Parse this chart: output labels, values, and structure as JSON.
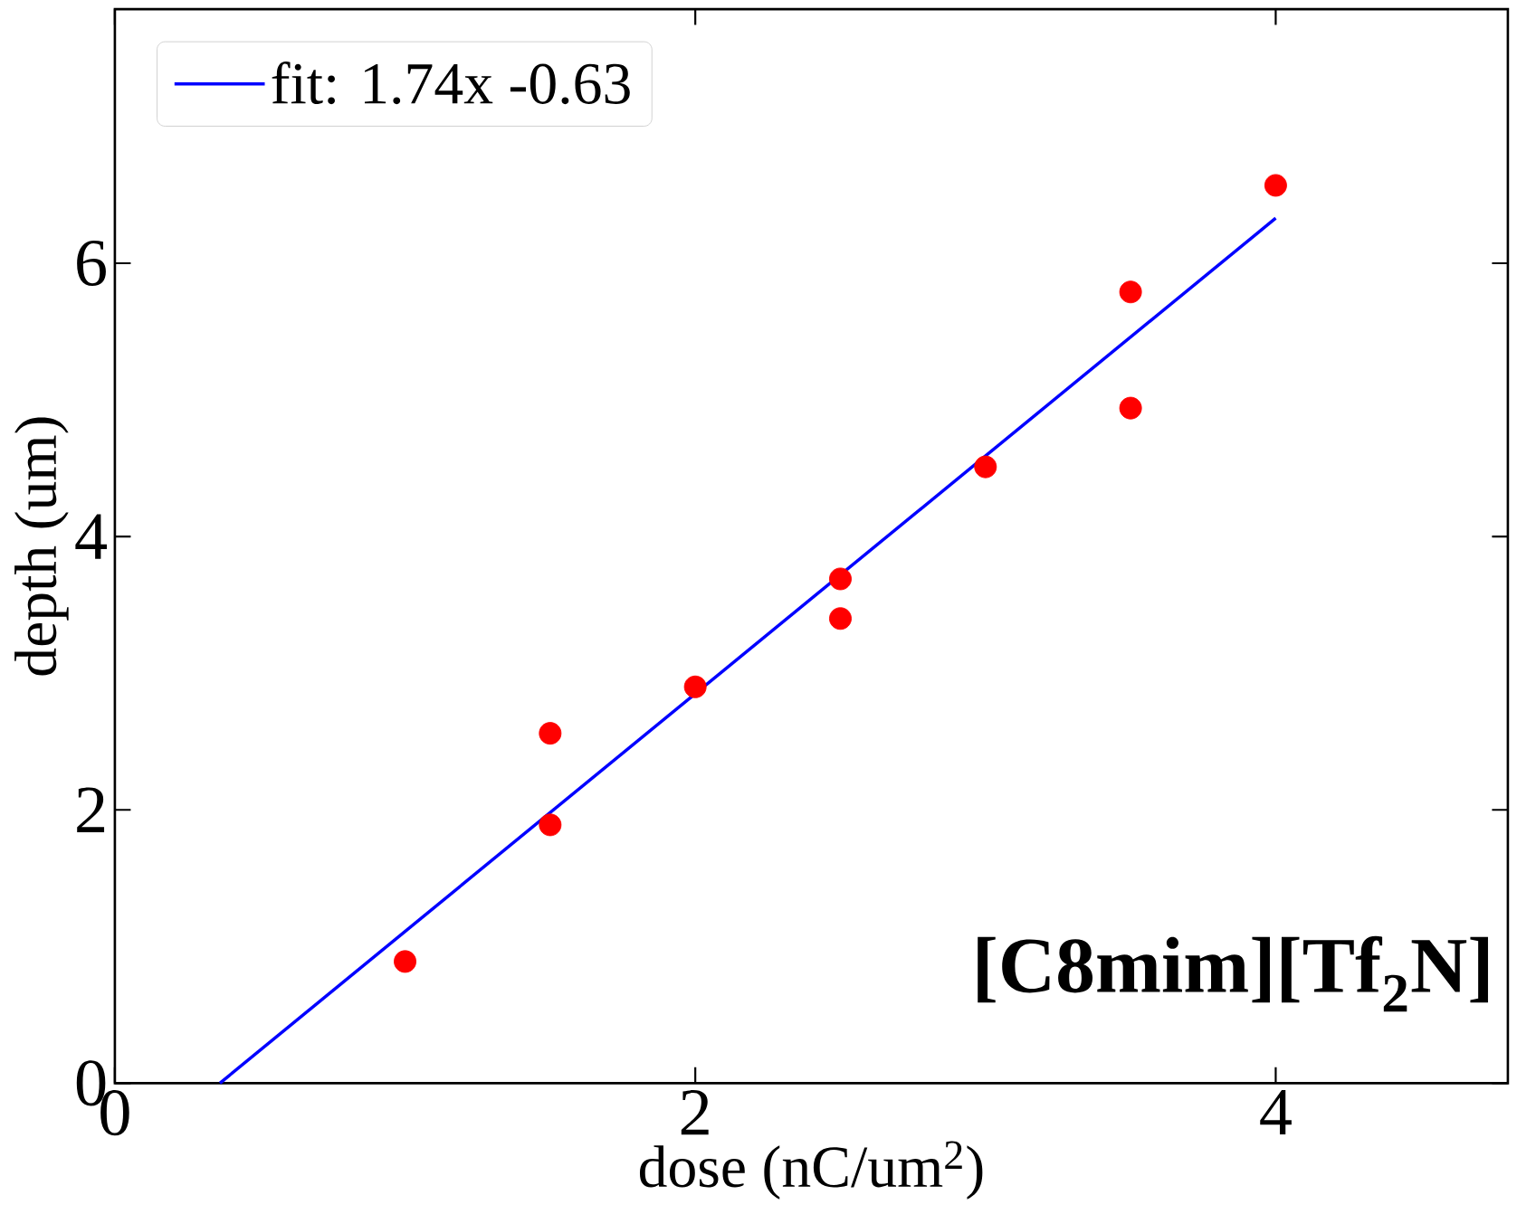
{
  "chart_data": {
    "type": "scatter",
    "xlabel": "dose (nC/um$^{2}$)",
    "ylabel": "depth (um)",
    "xlim": [
      0,
      4.8
    ],
    "ylim": [
      0,
      7.86
    ],
    "xticks": [
      0,
      2,
      4
    ],
    "yticks": [
      0,
      2,
      4,
      6
    ],
    "series": [
      {
        "color": "#ff0000",
        "marker": "circle",
        "x": [
          1,
          1.5,
          1.5,
          2,
          2.5,
          2.5,
          3,
          3.5,
          3.5,
          4
        ],
        "values": [
          0.89,
          2.56,
          1.89,
          2.9,
          3.69,
          3.4,
          4.51,
          5.79,
          4.94,
          6.57
        ]
      },
      {
        "type": "line",
        "name": "fit: 1.74x -0.63",
        "color": "#0000ff",
        "marker": "none",
        "line_style": "solid",
        "x": [
          0.362,
          4
        ],
        "values": [
          0,
          6.33
        ]
      }
    ],
    "annotations": [
      "[C8mim][Tf$_{2}$N]"
    ],
    "legend": "top left",
    "grid": false
  }
}
